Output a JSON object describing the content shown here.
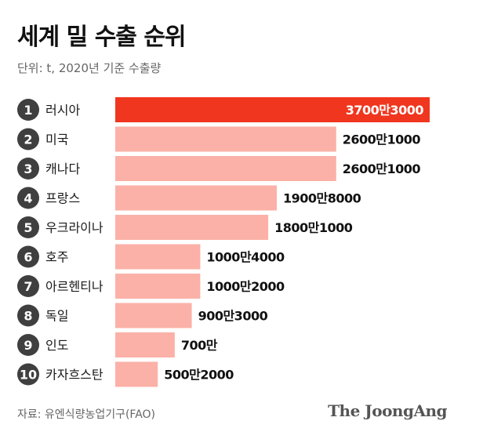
{
  "header": {
    "title": "세계 밀 수출 순위",
    "subtitle": "단위: t, 2020년 기준 수출량"
  },
  "footer": {
    "source": "자료: 유엔식량농업기구(FAO)",
    "brand": "The JoongAng"
  },
  "colors": {
    "highlight": "#f0361e",
    "bar": "#fbb1a7",
    "rank_circle": "#3f3f3f"
  },
  "chart_data": {
    "type": "bar",
    "orientation": "horizontal",
    "title": "세계 밀 수출 순위",
    "subtitle": "단위: t, 2020년 기준 수출량",
    "ranks": [
      "1",
      "2",
      "3",
      "4",
      "5",
      "6",
      "7",
      "8",
      "9",
      "10"
    ],
    "categories": [
      "러시아",
      "미국",
      "캐나다",
      "프랑스",
      "우크라이나",
      "호주",
      "아르헨티나",
      "독일",
      "인도",
      "카자흐스탄"
    ],
    "values": [
      37003000,
      26001000,
      26001000,
      19008000,
      18001000,
      10004000,
      10002000,
      9003000,
      7000000,
      5002000
    ],
    "value_labels": [
      "3700만3000",
      "2600만1000",
      "2600만1000",
      "1900만8000",
      "1800만1000",
      "1000만4000",
      "1000만2000",
      "900만3000",
      "700만",
      "500만2000"
    ],
    "unit": "t",
    "xlim": [
      0,
      37003000
    ],
    "grid": false,
    "legend": "none"
  }
}
